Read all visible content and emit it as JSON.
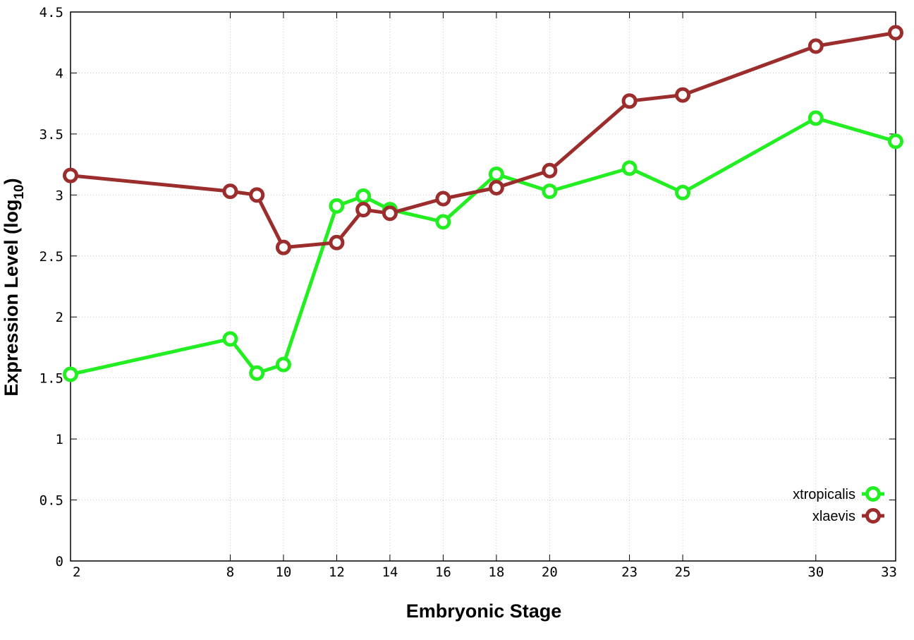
{
  "chart_data": {
    "type": "line",
    "xlabel": "Embryonic Stage",
    "ylabel_main": "Expression Level (log",
    "ylabel_sub": "10",
    "ylabel_close": ")",
    "xlim": [
      2,
      33
    ],
    "ylim": [
      0,
      4.5
    ],
    "x_ticks": [
      2,
      8,
      10,
      12,
      14,
      16,
      18,
      20,
      23,
      25,
      30,
      33
    ],
    "y_ticks": [
      {
        "value": 0,
        "label": "0"
      },
      {
        "value": 0.5,
        "label": "0.5"
      },
      {
        "value": 1,
        "label": "1"
      },
      {
        "value": 1.5,
        "label": "1.5"
      },
      {
        "value": 2,
        "label": "2"
      },
      {
        "value": 2.5,
        "label": "2.5"
      },
      {
        "value": 3,
        "label": "3"
      },
      {
        "value": 3.5,
        "label": "3.5"
      },
      {
        "value": 4,
        "label": "4"
      },
      {
        "value": 4.5,
        "label": "4.5"
      }
    ],
    "grid": true,
    "legend_position": "bottom-right",
    "x": [
      2,
      8,
      9,
      10,
      12,
      13,
      14,
      16,
      18,
      20,
      23,
      25,
      30,
      33
    ],
    "series": [
      {
        "name": "xtropicalis",
        "color": "#22ee22",
        "values": [
          1.53,
          1.82,
          1.54,
          1.61,
          2.91,
          2.99,
          2.88,
          2.78,
          3.17,
          3.03,
          3.22,
          3.02,
          3.63,
          3.44
        ]
      },
      {
        "name": "xlaevis",
        "color": "#9b2d2d",
        "values": [
          3.16,
          3.03,
          3.0,
          2.57,
          2.61,
          2.88,
          2.85,
          2.97,
          3.06,
          3.2,
          3.77,
          3.82,
          4.22,
          4.33
        ]
      }
    ]
  }
}
